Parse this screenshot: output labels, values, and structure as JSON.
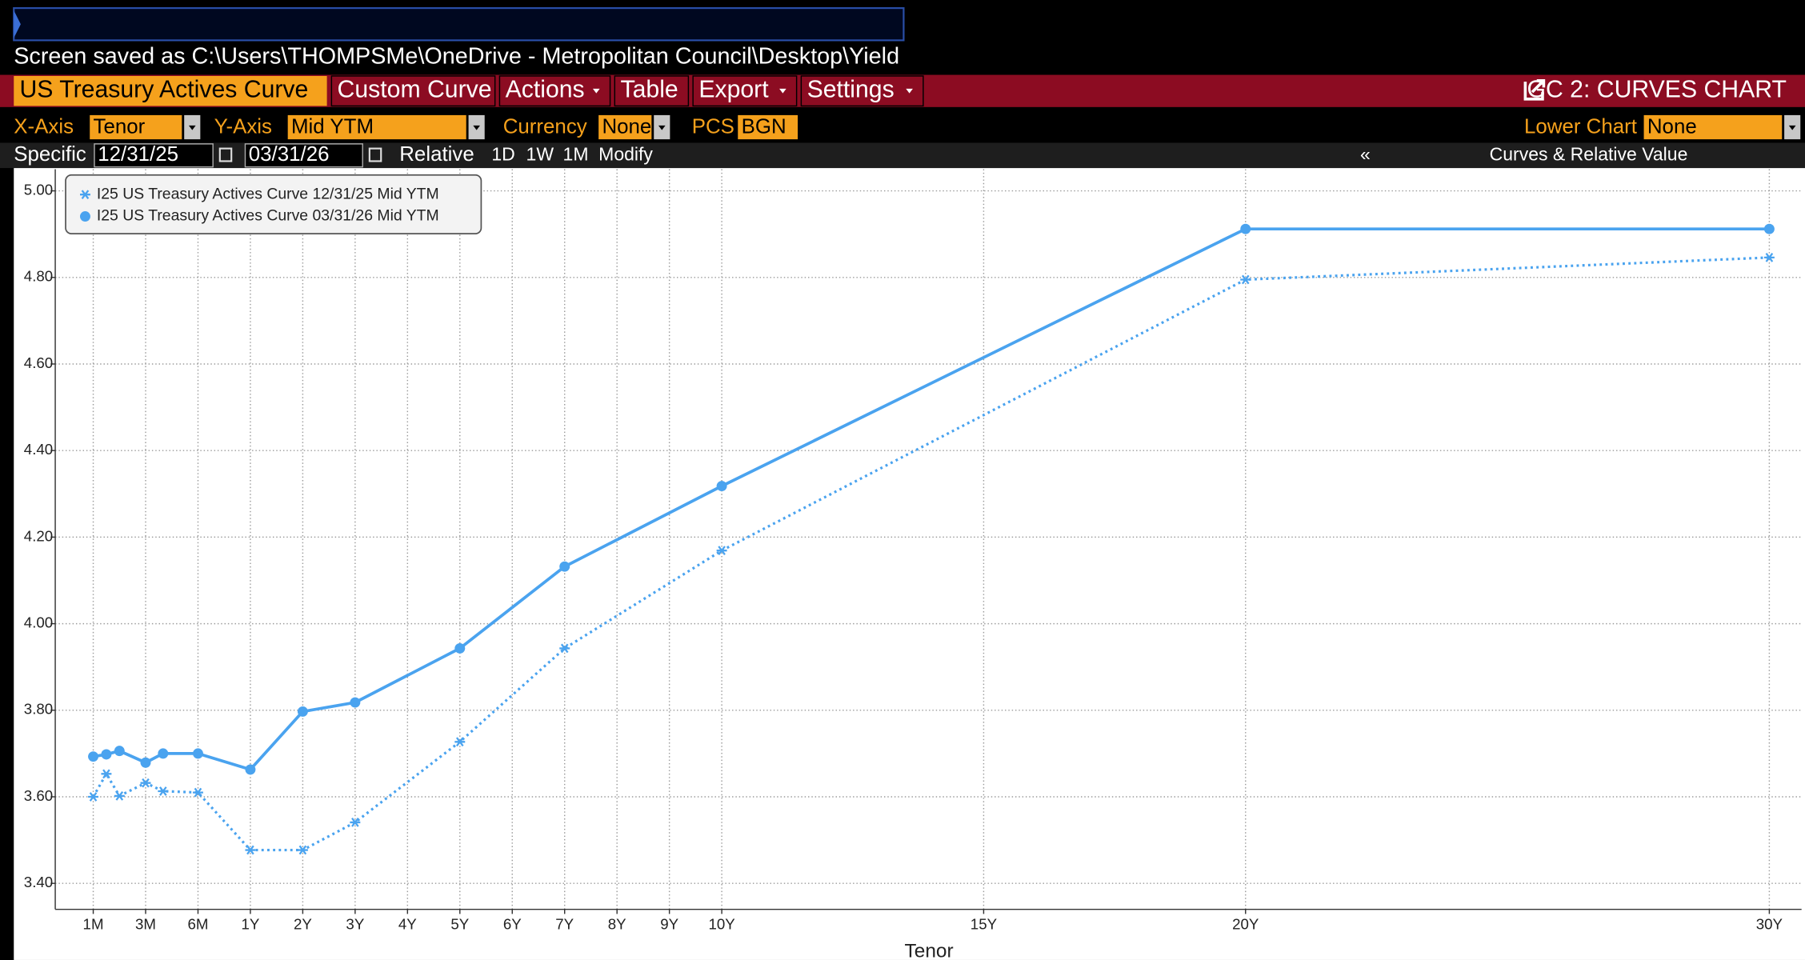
{
  "status": {
    "text": "Screen saved as C:\\Users\\THOMPSMe\\OneDrive - Metropolitan Council\\Desktop\\Yield"
  },
  "menu": {
    "items": [
      "US Treasury Actives Curve",
      "Custom Curve",
      "Actions",
      "Table",
      "Export",
      "Settings"
    ],
    "function": "GC 2: CURVES CHART"
  },
  "controls": {
    "x_axis_label": "X-Axis",
    "x_axis_value": "Tenor",
    "y_axis_label": "Y-Axis",
    "y_axis_value": "Mid YTM",
    "currency_label": "Currency",
    "currency_value": "None",
    "pcs_label": "PCS",
    "pcs_value": "BGN",
    "lower_chart_label": "Lower Chart",
    "lower_chart_value": "None"
  },
  "dates": {
    "specific_label": "Specific",
    "date1": "12/31/25",
    "date2": "03/31/26",
    "relative_label": "Relative",
    "relative_options": [
      "1D",
      "1W",
      "1M"
    ],
    "modify": "Modify",
    "collapse": "«",
    "panel_title": "Curves & Relative Value"
  },
  "chart_data": {
    "type": "line",
    "x_label": "Tenor",
    "x": [
      0.0833,
      0.125,
      0.1667,
      0.25,
      0.3333,
      0.5,
      1,
      2,
      3,
      5,
      7,
      10,
      20,
      30
    ],
    "series": [
      {
        "name": "I25 US Treasury Actives Curve 12/31/25 Mid YTM",
        "color": "#4aa3ef",
        "style": "dotted",
        "marker": "star",
        "values": [
          3.6,
          3.653,
          3.602,
          3.632,
          3.613,
          3.61,
          3.477,
          3.477,
          3.541,
          3.727,
          3.943,
          4.169,
          4.795,
          4.846
        ]
      },
      {
        "name": "I25 US Treasury Actives Curve 03/31/26 Mid YTM",
        "color": "#4aa3ef",
        "style": "solid",
        "marker": "circle",
        "values": [
          3.693,
          3.698,
          3.706,
          3.679,
          3.7,
          3.7,
          3.663,
          3.797,
          3.818,
          3.943,
          4.132,
          4.318,
          4.912,
          4.912
        ]
      }
    ],
    "ylim": [
      3.34,
      5.05
    ],
    "yticks": [
      {
        "value": 3.4,
        "label": "3.40"
      },
      {
        "value": 3.6,
        "label": "3.60"
      },
      {
        "value": 3.8,
        "label": "3.80"
      },
      {
        "value": 4.0,
        "label": "4.00"
      },
      {
        "value": 4.2,
        "label": "4.20"
      },
      {
        "value": 4.4,
        "label": "4.40"
      },
      {
        "value": 4.6,
        "label": "4.60"
      },
      {
        "value": 4.8,
        "label": "4.80"
      },
      {
        "value": 5.0,
        "label": "5.00"
      }
    ],
    "xticks": [
      {
        "value": 0.0833,
        "label": "1M"
      },
      {
        "value": 0.25,
        "label": "3M"
      },
      {
        "value": 0.5,
        "label": "6M"
      },
      {
        "value": 1,
        "label": "1Y"
      },
      {
        "value": 2,
        "label": "2Y"
      },
      {
        "value": 3,
        "label": "3Y"
      },
      {
        "value": 4,
        "label": "4Y"
      },
      {
        "value": 5,
        "label": "5Y"
      },
      {
        "value": 6,
        "label": "6Y"
      },
      {
        "value": 7,
        "label": "7Y"
      },
      {
        "value": 8,
        "label": "8Y"
      },
      {
        "value": 9,
        "label": "9Y"
      },
      {
        "value": 10,
        "label": "10Y"
      },
      {
        "value": 15,
        "label": "15Y"
      },
      {
        "value": 20,
        "label": "20Y"
      },
      {
        "value": 30,
        "label": "30Y"
      }
    ],
    "grid": true,
    "legend": "upper left"
  }
}
